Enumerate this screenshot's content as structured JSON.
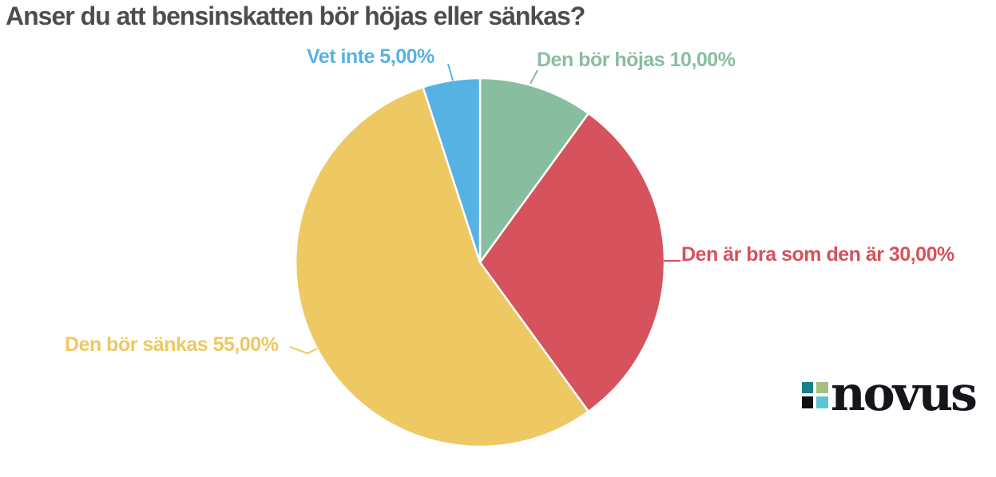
{
  "title": "Anser du att bensinskatten bör höjas eller sänkas?",
  "colors": {
    "title": "#4d4d4d",
    "background": "#ffffff"
  },
  "chart_data": {
    "type": "pie",
    "title": "Anser du att bensinskatten bör höjas eller sänkas?",
    "unit": "percent",
    "number_format": "sv-SE",
    "start_angle_deg": 0,
    "direction": "clockwise",
    "legend_position": "labels-around-pie",
    "slices": [
      {
        "label": "Den bör höjas",
        "value": 10,
        "display": "Den bör höjas 10,00%",
        "color": "#89bda0"
      },
      {
        "label": "Den är bra som den är",
        "value": 30,
        "display": "Den är bra som den är 30,00%",
        "color": "#d6525c"
      },
      {
        "label": "Den bör sänkas",
        "value": 55,
        "display": "Den bör sänkas 55,00%",
        "color": "#eec862"
      },
      {
        "label": "Vet inte",
        "value": 5,
        "display": "Vet inte 5,00%",
        "color": "#56b2e2"
      }
    ]
  },
  "logo": {
    "text": "novus",
    "color": "#17141b",
    "squares": [
      {
        "name": "teal",
        "color": "#16818b"
      },
      {
        "name": "olive",
        "color": "#a3c07f"
      },
      {
        "name": "black",
        "color": "#111111"
      },
      {
        "name": "cyan",
        "color": "#5cc5d4"
      }
    ]
  }
}
